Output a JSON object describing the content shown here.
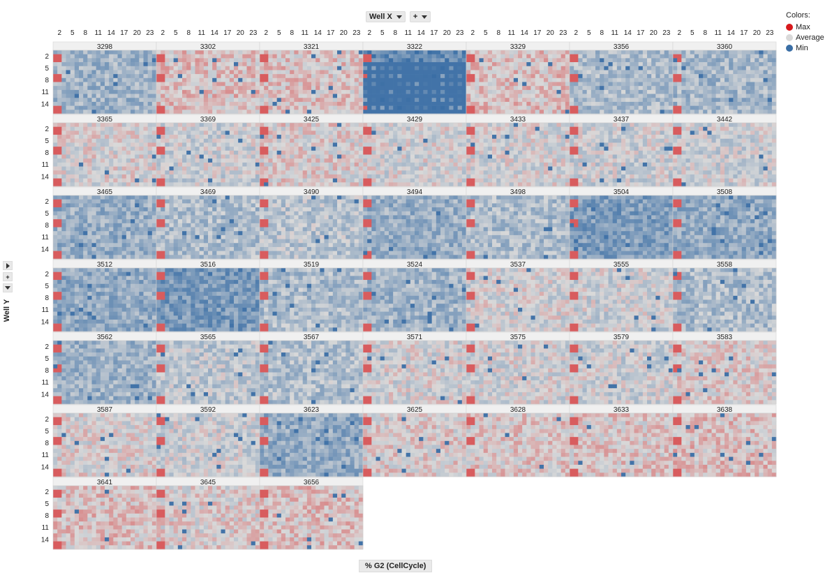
{
  "toolbar": {
    "x_axis_label": "Well X",
    "plus": "+",
    "y_axis_label": "Well Y",
    "y_plus": "+",
    "color_by_label": "% G2 (CellCycle)"
  },
  "legend": {
    "title": "Colors:",
    "items": [
      {
        "label": "Max",
        "color": "#d7191c"
      },
      {
        "label": "Average",
        "color": "#d9d9d9"
      },
      {
        "label": "Min",
        "color": "#3a6ea5"
      }
    ]
  },
  "chart_data": {
    "type": "heatmap",
    "grid": {
      "columns": 7,
      "rows": 7
    },
    "x_ticks": [
      "2",
      "5",
      "8",
      "11",
      "14",
      "17",
      "20",
      "23"
    ],
    "y_ticks": [
      "2",
      "5",
      "8",
      "11",
      "14"
    ],
    "x_range": [
      1,
      24
    ],
    "y_range": [
      1,
      16
    ],
    "color_scale": {
      "max": "#d7191c",
      "average": "#d9d9d9",
      "min": "#3a6ea5"
    },
    "panels": [
      {
        "plate": "3298",
        "bias": -0.45
      },
      {
        "plate": "3302",
        "bias": 0.15
      },
      {
        "plate": "3321",
        "bias": 0.12
      },
      {
        "plate": "3322",
        "bias": -0.95
      },
      {
        "plate": "3329",
        "bias": 0.15
      },
      {
        "plate": "3356",
        "bias": -0.35
      },
      {
        "plate": "3360",
        "bias": -0.4
      },
      {
        "plate": "3365",
        "bias": 0.0
      },
      {
        "plate": "3369",
        "bias": -0.1
      },
      {
        "plate": "3425",
        "bias": 0.05
      },
      {
        "plate": "3429",
        "bias": -0.05
      },
      {
        "plate": "3433",
        "bias": -0.05
      },
      {
        "plate": "3437",
        "bias": -0.1
      },
      {
        "plate": "3442",
        "bias": -0.1
      },
      {
        "plate": "3465",
        "bias": -0.5
      },
      {
        "plate": "3469",
        "bias": -0.35
      },
      {
        "plate": "3490",
        "bias": -0.25
      },
      {
        "plate": "3494",
        "bias": -0.5
      },
      {
        "plate": "3498",
        "bias": -0.35
      },
      {
        "plate": "3504",
        "bias": -0.7
      },
      {
        "plate": "3508",
        "bias": -0.55
      },
      {
        "plate": "3512",
        "bias": -0.55
      },
      {
        "plate": "3516",
        "bias": -0.75
      },
      {
        "plate": "3519",
        "bias": -0.35
      },
      {
        "plate": "3524",
        "bias": -0.45
      },
      {
        "plate": "3537",
        "bias": -0.05
      },
      {
        "plate": "3555",
        "bias": -0.1
      },
      {
        "plate": "3558",
        "bias": -0.35
      },
      {
        "plate": "3562",
        "bias": -0.45
      },
      {
        "plate": "3565",
        "bias": -0.2
      },
      {
        "plate": "3567",
        "bias": -0.3
      },
      {
        "plate": "3571",
        "bias": -0.05
      },
      {
        "plate": "3575",
        "bias": -0.05
      },
      {
        "plate": "3579",
        "bias": -0.1
      },
      {
        "plate": "3583",
        "bias": 0.05
      },
      {
        "plate": "3587",
        "bias": 0.0
      },
      {
        "plate": "3592",
        "bias": -0.1
      },
      {
        "plate": "3623",
        "bias": -0.55
      },
      {
        "plate": "3625",
        "bias": 0.05
      },
      {
        "plate": "3628",
        "bias": 0.1
      },
      {
        "plate": "3633",
        "bias": 0.1
      },
      {
        "plate": "3638",
        "bias": 0.15
      },
      {
        "plate": "3641",
        "bias": 0.15
      },
      {
        "plate": "3645",
        "bias": 0.05
      },
      {
        "plate": "3656",
        "bias": 0.15
      }
    ]
  }
}
